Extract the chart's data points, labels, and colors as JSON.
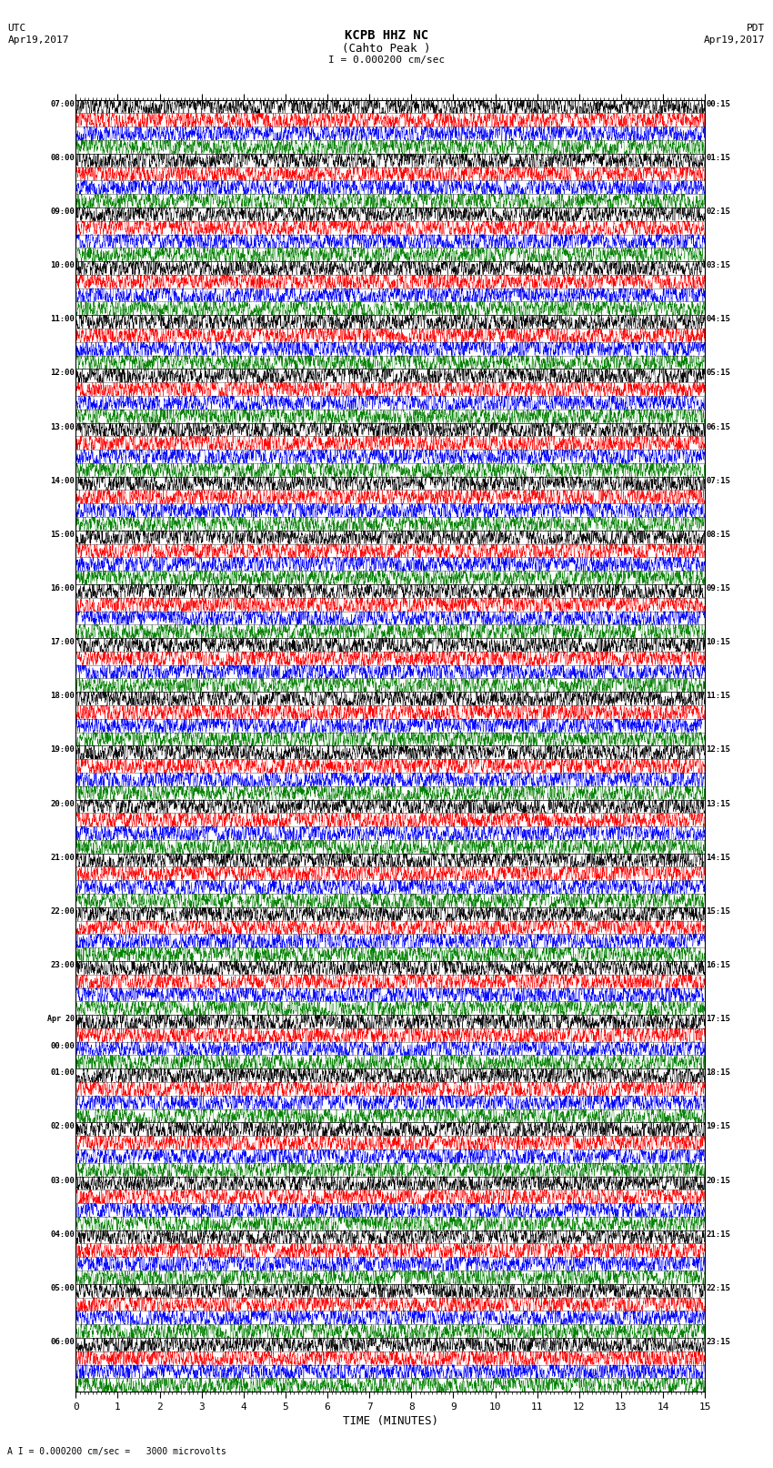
{
  "title_line1": "KCPB HHZ NC",
  "title_line2": "(Cahto Peak )",
  "scale_label": "I = 0.000200 cm/sec",
  "utc_label1": "UTC",
  "utc_label2": "Apr19,2017",
  "pdt_label1": "PDT",
  "pdt_label2": "Apr19,2017",
  "xlabel": "TIME (MINUTES)",
  "bottom_note": "A I = 0.000200 cm/sec =   3000 microvolts",
  "left_times": [
    "07:00",
    "08:00",
    "09:00",
    "10:00",
    "11:00",
    "12:00",
    "13:00",
    "14:00",
    "15:00",
    "16:00",
    "17:00",
    "18:00",
    "19:00",
    "20:00",
    "21:00",
    "22:00",
    "23:00",
    "Apr 20\n00:00",
    "01:00",
    "02:00",
    "03:00",
    "04:00",
    "05:00",
    "06:00"
  ],
  "right_times": [
    "00:15",
    "01:15",
    "02:15",
    "03:15",
    "04:15",
    "05:15",
    "06:15",
    "07:15",
    "08:15",
    "09:15",
    "10:15",
    "11:15",
    "12:15",
    "13:15",
    "14:15",
    "15:15",
    "16:15",
    "17:15",
    "18:15",
    "19:15",
    "20:15",
    "21:15",
    "22:15",
    "23:15"
  ],
  "num_rows": 24,
  "traces_per_row": 4,
  "colors": [
    "black",
    "red",
    "blue",
    "green"
  ],
  "bg_color": "white",
  "xlim": [
    0,
    15
  ],
  "xticks": [
    0,
    1,
    2,
    3,
    4,
    5,
    6,
    7,
    8,
    9,
    10,
    11,
    12,
    13,
    14,
    15
  ],
  "fig_width": 8.5,
  "fig_height": 16.13,
  "dpi": 100,
  "n_points": 9000,
  "amp_scale": 0.42,
  "lf_sigma": 30,
  "mf_sigma": 6,
  "hf_sigma": 1.5
}
